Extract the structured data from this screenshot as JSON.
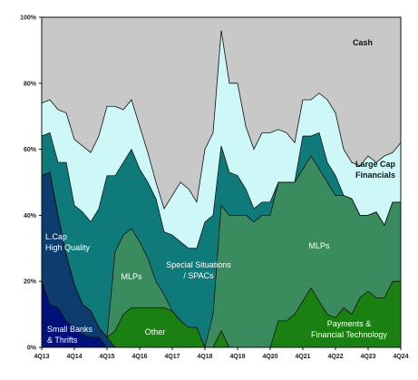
{
  "chart_data": {
    "type": "area",
    "stacked": true,
    "ylim": [
      0,
      100
    ],
    "y_ticks": [
      "0%",
      "20%",
      "40%",
      "60%",
      "80%",
      "100%"
    ],
    "x": [
      "4Q13",
      "1Q14",
      "2Q14",
      "3Q14",
      "4Q14",
      "1Q15",
      "2Q15",
      "3Q15",
      "4Q15",
      "1Q16",
      "2Q16",
      "3Q16",
      "4Q16",
      "1Q17",
      "2Q17",
      "3Q17",
      "4Q17",
      "1Q18",
      "2Q18",
      "3Q18",
      "4Q18",
      "1Q19",
      "2Q19",
      "3Q19",
      "4Q19",
      "1Q20",
      "2Q20",
      "3Q20",
      "4Q20",
      "1Q21",
      "2Q21",
      "3Q21",
      "4Q21",
      "1Q22",
      "2Q22",
      "3Q22",
      "4Q22",
      "1Q23",
      "2Q23",
      "3Q23",
      "4Q23",
      "1Q24",
      "2Q24",
      "3Q24",
      "4Q24"
    ],
    "x_tick_labels": [
      "4Q13",
      "4Q14",
      "4Q15",
      "4Q16",
      "4Q17",
      "4Q18",
      "4Q19",
      "4Q20",
      "4Q21",
      "4Q22",
      "4Q23",
      "4Q24"
    ],
    "series": [
      {
        "name": "Small Banks & Thrifts",
        "color": "#00127a",
        "values": [
          20,
          13,
          12,
          8,
          6,
          4,
          3,
          3,
          0,
          0,
          0,
          0,
          0,
          0,
          0,
          0,
          0,
          0,
          0,
          0,
          0,
          0,
          0,
          0,
          0,
          0,
          0,
          0,
          0,
          0,
          0,
          0,
          0,
          0,
          0,
          0,
          0,
          0,
          0,
          0,
          0,
          0,
          0,
          0,
          0
        ]
      },
      {
        "name": "L.Cap High Quality",
        "color": "#0c3d6e",
        "values": [
          32,
          40,
          28,
          20,
          13,
          9,
          8,
          3,
          3,
          0,
          0,
          0,
          0,
          0,
          0,
          0,
          0,
          0,
          0,
          0,
          0,
          0,
          0,
          0,
          0,
          0,
          0,
          0,
          0,
          0,
          0,
          0,
          0,
          0,
          0,
          0,
          0,
          0,
          0,
          0,
          0,
          0,
          0,
          0,
          0
        ]
      },
      {
        "name": "Other",
        "color": "#1a8012",
        "values": [
          0,
          0,
          0,
          0,
          0,
          0,
          0,
          0,
          0,
          5,
          10,
          12,
          12,
          12,
          12,
          12,
          11,
          8,
          6,
          6,
          0,
          0,
          5,
          0,
          0,
          0,
          0,
          0,
          0,
          8,
          8,
          10,
          14,
          18,
          14,
          10,
          9,
          12,
          10,
          15,
          17,
          15,
          15,
          20,
          20
        ]
      },
      {
        "name": "Payments & Financial Technology",
        "color": "#3a8c5e",
        "values": [
          0,
          0,
          0,
          0,
          0,
          0,
          0,
          0,
          0,
          24,
          24,
          24,
          20,
          15,
          8,
          4,
          0,
          0,
          0,
          0,
          0,
          10,
          38,
          40,
          40,
          40,
          38,
          40,
          40,
          42,
          42,
          40,
          40,
          40,
          40,
          40,
          37,
          34,
          35,
          25,
          23,
          26,
          22,
          24,
          24
        ]
      },
      {
        "name": "Special Situations / SPACs",
        "color": "#0f7a7a",
        "values": [
          12,
          12,
          16,
          28,
          24,
          28,
          27,
          36,
          49,
          23,
          22,
          24,
          22,
          23,
          25,
          19,
          23,
          24,
          24,
          24,
          38,
          30,
          18,
          13,
          12,
          8,
          4,
          4,
          4,
          0,
          0,
          0,
          10,
          6,
          11,
          6,
          6,
          0,
          0,
          0,
          0,
          0,
          0,
          0,
          0
        ]
      },
      {
        "name": "Large Cap Financials",
        "color": "#cef8f8",
        "values": [
          10,
          10,
          16,
          15,
          20,
          20,
          21,
          22,
          21,
          21,
          16,
          15,
          13,
          9,
          5,
          7,
          12,
          18,
          18,
          14,
          22,
          25,
          35,
          27,
          28,
          19,
          18,
          21,
          21,
          16,
          15,
          12,
          11,
          11,
          12,
          19,
          19,
          14,
          11,
          15,
          18,
          15,
          21,
          15,
          18
        ]
      },
      {
        "name": "Cash",
        "color": "#c8c8c8",
        "values": [
          26,
          25,
          28,
          29,
          37,
          39,
          41,
          36,
          27,
          27,
          28,
          25,
          33,
          41,
          50,
          58,
          54,
          50,
          52,
          56,
          40,
          35,
          4,
          20,
          20,
          33,
          40,
          35,
          35,
          34,
          35,
          38,
          25,
          25,
          23,
          25,
          29,
          40,
          44,
          45,
          42,
          44,
          42,
          41,
          38
        ]
      }
    ],
    "annotations": [
      {
        "text": "Cash",
        "series": "Cash"
      },
      {
        "text": "Large Cap",
        "series": "Large Cap Financials"
      },
      {
        "text": "Financials",
        "series": "Large Cap Financials"
      },
      {
        "text": "L.Cap",
        "series": "L.Cap High Quality"
      },
      {
        "text": "High Quality",
        "series": "L.Cap High Quality"
      },
      {
        "text": "MLPs",
        "series": "Payments & Financial Technology"
      },
      {
        "text": "MLPs",
        "series": "Payments & Financial Technology"
      },
      {
        "text": "Special Situations",
        "series": "Special Situations / SPACs"
      },
      {
        "text": "/ SPACs",
        "series": "Special Situations / SPACs"
      },
      {
        "text": "Other",
        "series": "Other"
      },
      {
        "text": "Small Banks",
        "series": "Small Banks & Thrifts"
      },
      {
        "text": "& Thrifts",
        "series": "Small Banks & Thrifts"
      },
      {
        "text": "Payments &",
        "series": "Payments & Financial Technology"
      },
      {
        "text": "Financial Technology",
        "series": "Payments & Financial Technology"
      }
    ],
    "grid": false,
    "legend": "none"
  }
}
